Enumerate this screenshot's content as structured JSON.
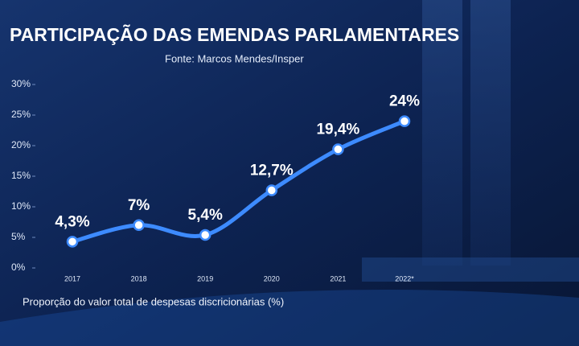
{
  "chart_data": {
    "type": "line",
    "title": "PARTICIPAÇÃO DAS EMENDAS PARLAMENTARES",
    "subtitle": "Fonte: Marcos Mendes/Insper",
    "x_label": "Proporção do valor total de despesas discricionárias (%)",
    "categories": [
      "2017",
      "2018",
      "2019",
      "2020",
      "2021",
      "2022*"
    ],
    "values": [
      4.3,
      7,
      5.4,
      12.7,
      19.4,
      24
    ],
    "value_labels": [
      "4,3%",
      "7%",
      "5,4%",
      "12,7%",
      "19,4%",
      "24%"
    ],
    "color": "#3d8bff",
    "ylim": [
      0,
      30
    ],
    "yticks": [
      {
        "value": 0,
        "label": "0%"
      },
      {
        "value": 5,
        "label": "5%"
      },
      {
        "value": 10,
        "label": "10%"
      },
      {
        "value": 15,
        "label": "15%"
      },
      {
        "value": 20,
        "label": "20%"
      },
      {
        "value": 25,
        "label": "25%"
      },
      {
        "value": 30,
        "label": "30%"
      }
    ]
  }
}
